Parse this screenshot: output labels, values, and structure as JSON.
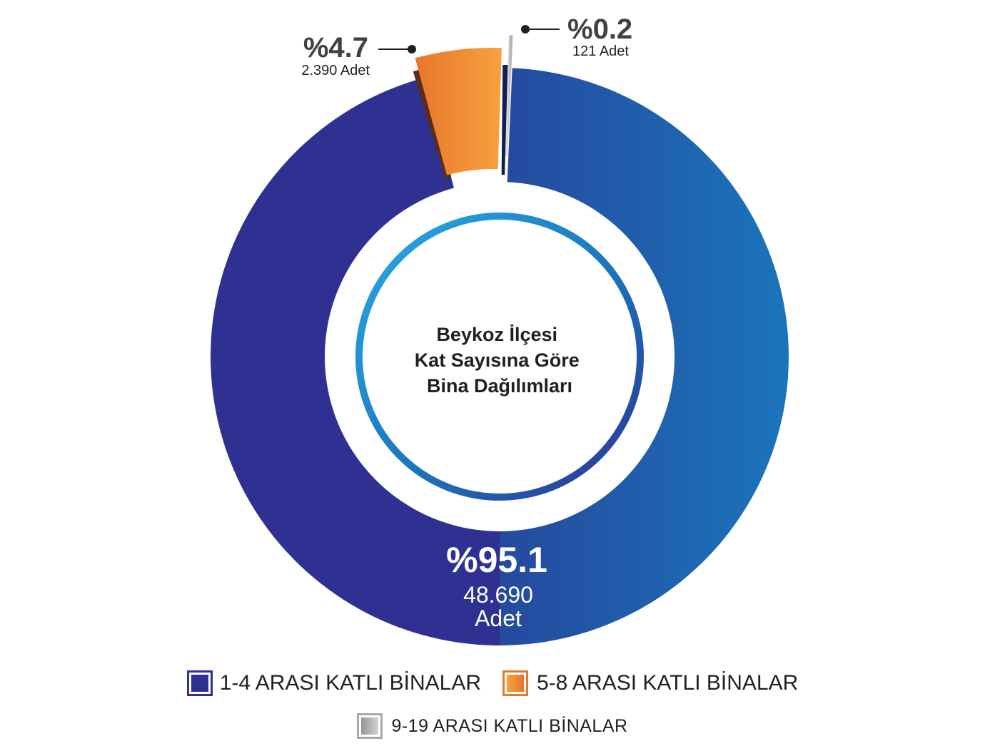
{
  "chart_data": {
    "type": "pie",
    "title": "Beykoz İlçesi Kat Sayısına Göre Bina Dağılımları",
    "title_lines": [
      "Beykoz İlçesi",
      "Kat Sayısına Göre",
      "Bina Dağılımları"
    ],
    "slices": [
      {
        "label": "1-4 ARASI KATLI BİNALAR",
        "percent": 95.1,
        "percent_text": "%95.1",
        "count": 48690,
        "count_text": "48.690",
        "unit": "Adet",
        "color": "#2e3192",
        "color_alt": "#1b75bb"
      },
      {
        "label": "5-8 ARASI KATLI BİNALAR",
        "percent": 4.7,
        "percent_text": "%4.7",
        "count": 2390,
        "count_text": "2.390",
        "unit": "Adet",
        "color": "#f7a13e",
        "color_alt": "#e8762d"
      },
      {
        "label": "9-19 ARASI KATLI BİNALAR",
        "percent": 0.2,
        "percent_text": "%0.2",
        "count": 121,
        "count_text": "121",
        "unit": "Adet",
        "color": "#c7c8ca",
        "color_alt": "#939598"
      }
    ],
    "legend_position": "bottom",
    "colors": {
      "text_dark": "#231f20",
      "label_dark": "#414042",
      "inner_ring_start": "#29abe2",
      "inner_ring_end": "#2e3192"
    }
  }
}
